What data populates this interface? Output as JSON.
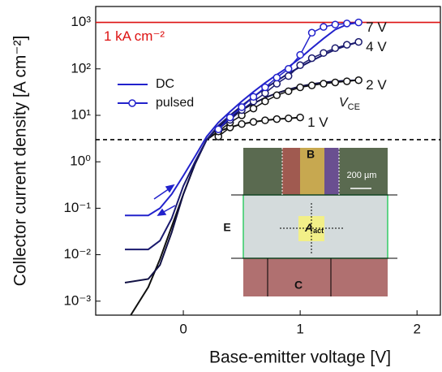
{
  "chart_data": {
    "type": "line",
    "xlabel": "Base-emitter voltage [V]",
    "ylabel": "Collector current density [A cm⁻²]",
    "xlim": [
      -0.75,
      2.2
    ],
    "xticks": [
      0,
      1,
      2
    ],
    "ylim": [
      0.0005,
      2200
    ],
    "log_y": true,
    "yticks": [
      {
        "value": 0.001,
        "label": "10⁻³"
      },
      {
        "value": 0.01,
        "label": "10⁻²"
      },
      {
        "value": 0.1,
        "label": "10⁻¹"
      },
      {
        "value": 1,
        "label": "10⁰"
      },
      {
        "value": 10,
        "label": "10¹"
      },
      {
        "value": 100,
        "label": "10²"
      },
      {
        "value": 1000,
        "label": "10³"
      }
    ],
    "legend": [
      {
        "name": "DC",
        "color": "#2222cc"
      },
      {
        "name": "pulsed",
        "color": "#2222cc"
      }
    ],
    "series": [
      {
        "name": "1 V",
        "color": "#111111",
        "x": [
          0.3,
          0.4,
          0.5,
          0.6,
          0.7,
          0.8,
          0.9,
          1.0
        ],
        "values": [
          3.5,
          5.5,
          6.5,
          7.2,
          7.8,
          8.3,
          8.6,
          9
        ]
      },
      {
        "name": "2 V",
        "color": "#111111",
        "x": [
          0.3,
          0.4,
          0.5,
          0.6,
          0.7,
          0.8,
          0.9,
          1.0,
          1.1,
          1.2,
          1.3,
          1.4,
          1.5
        ],
        "values": [
          4.5,
          7,
          10,
          14,
          20,
          27,
          33,
          40,
          44,
          48,
          51,
          54,
          57
        ]
      },
      {
        "name": "4 V",
        "color": "#1a1a6e",
        "x": [
          0.3,
          0.4,
          0.5,
          0.6,
          0.7,
          0.8,
          0.9,
          1.0,
          1.1,
          1.2,
          1.3,
          1.4,
          1.5
        ],
        "values": [
          5,
          8,
          13,
          20,
          30,
          48,
          70,
          120,
          170,
          220,
          280,
          330,
          380
        ]
      },
      {
        "name": "7 V",
        "color": "#2222cc",
        "x": [
          0.3,
          0.4,
          0.5,
          0.6,
          0.7,
          0.8,
          0.9,
          1.0,
          1.1,
          1.2,
          1.3,
          1.4,
          1.5
        ],
        "values": [
          5,
          9,
          15,
          25,
          40,
          65,
          100,
          200,
          600,
          800,
          900,
          950,
          1000
        ]
      }
    ],
    "dc_series": [
      {
        "color": "#111111",
        "x": [
          -0.45,
          -0.3,
          -0.2,
          -0.1,
          0,
          0.1,
          0.2,
          0.3,
          0.4,
          0.5,
          0.6,
          0.7,
          0.8,
          0.9,
          1.0
        ],
        "values": [
          0.0005,
          0.002,
          0.008,
          0.04,
          0.2,
          0.9,
          3,
          4.5,
          5.5,
          6.5,
          7.2,
          7.8,
          8.3,
          8.6,
          9
        ]
      },
      {
        "color": "#111144",
        "x": [
          -0.5,
          -0.3,
          -0.2,
          -0.1,
          0,
          0.1,
          0.2,
          0.3,
          0.4,
          0.5,
          0.6,
          0.7,
          0.8,
          0.9,
          1.0,
          1.1,
          1.2,
          1.3,
          1.4,
          1.5
        ],
        "values": [
          0.0025,
          0.003,
          0.006,
          0.03,
          0.2,
          0.9,
          3,
          5.5,
          9,
          13,
          18,
          24,
          30,
          36,
          42,
          47,
          51,
          54,
          56,
          57
        ]
      },
      {
        "color": "#1a1a6e",
        "x": [
          -0.5,
          -0.3,
          -0.2,
          -0.1,
          0,
          0.1,
          0.2,
          0.3,
          0.4,
          0.5,
          0.6,
          0.7,
          0.8,
          0.9,
          1.0,
          1.1,
          1.2,
          1.3,
          1.4,
          1.5
        ],
        "values": [
          0.013,
          0.013,
          0.02,
          0.06,
          0.3,
          1,
          3,
          6,
          10,
          16,
          25,
          38,
          55,
          80,
          110,
          150,
          200,
          260,
          320,
          380
        ]
      },
      {
        "color": "#2222cc",
        "x": [
          -0.5,
          -0.3,
          -0.2,
          -0.1,
          0,
          0.1,
          0.2,
          0.3,
          0.4,
          0.5,
          0.6,
          0.7,
          0.8,
          0.9,
          1.0,
          1.1,
          1.2,
          1.3,
          1.4,
          1.5
        ],
        "values": [
          0.07,
          0.07,
          0.1,
          0.2,
          0.5,
          1.3,
          3.5,
          7,
          12,
          20,
          32,
          50,
          75,
          110,
          170,
          280,
          450,
          700,
          900,
          1000
        ]
      }
    ],
    "reference_lines": [
      {
        "value": 1000,
        "color": "#dd1111",
        "label": "1 kA cm⁻²"
      },
      {
        "value": 3,
        "color": "#000000",
        "dashed": true
      }
    ],
    "vce_label": {
      "text": "V",
      "sub": "CE"
    },
    "inset": {
      "base": "B",
      "emitter": "E",
      "collector": "C",
      "scale": "200 µm",
      "area": "A",
      "area_sub": "act"
    }
  }
}
